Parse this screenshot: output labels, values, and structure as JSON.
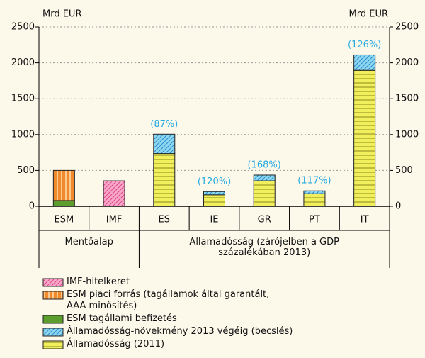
{
  "chart_data": {
    "type": "stacked_bar",
    "ylabel": "Mrd EUR",
    "y2label": "Mrd EUR",
    "categories": [
      "ESM",
      "IMF",
      "ES",
      "IE",
      "GR",
      "PT",
      "IT"
    ],
    "groups": [
      {
        "label": "Mentőalap",
        "categories": [
          "ESM",
          "IMF"
        ]
      },
      {
        "label": "Államadósság (zárójelben a GDP\nszázalékában 2013)",
        "categories": [
          "ES",
          "IE",
          "GR",
          "PT",
          "IT"
        ]
      }
    ],
    "annotations": [
      null,
      null,
      "(87%)",
      "(120%)",
      "(168%)",
      "(117%)",
      "(126%)"
    ],
    "series": [
      {
        "name": "Államadósság (2011)",
        "color": "#f2ef5c",
        "pattern": "horizontal",
        "values": [
          null,
          null,
          735,
          160,
          355,
          175,
          1895
        ]
      },
      {
        "name": "Államadósság-növekmény 2013 végéig (becslés)",
        "color": "#8fd8f0",
        "pattern": "diagonal",
        "values": [
          null,
          null,
          270,
          45,
          80,
          40,
          215
        ]
      },
      {
        "name": "ESM tagállami befizetés",
        "color": "#5b9e2e",
        "pattern": "solid",
        "values": [
          80,
          null,
          null,
          null,
          null,
          null,
          null
        ]
      },
      {
        "name": "ESM piaci forrás (tagállamok által garantált,\nAAA minősítés)",
        "color": "#f08a2c",
        "pattern": "vertical",
        "values": [
          420,
          null,
          null,
          null,
          null,
          null,
          null
        ]
      },
      {
        "name": "IMF-hitelkeret",
        "color": "#f7a8c8",
        "pattern": "diagonal",
        "values": [
          null,
          355,
          null,
          null,
          null,
          null,
          null
        ]
      }
    ],
    "ylim": [
      0,
      2500
    ],
    "yticks": [
      0,
      500,
      1000,
      1500,
      2000,
      2500
    ],
    "y2lim": [
      0,
      2500
    ],
    "y2ticks": [
      0,
      500,
      1000,
      1500,
      2000,
      2500
    ],
    "grid": true
  }
}
